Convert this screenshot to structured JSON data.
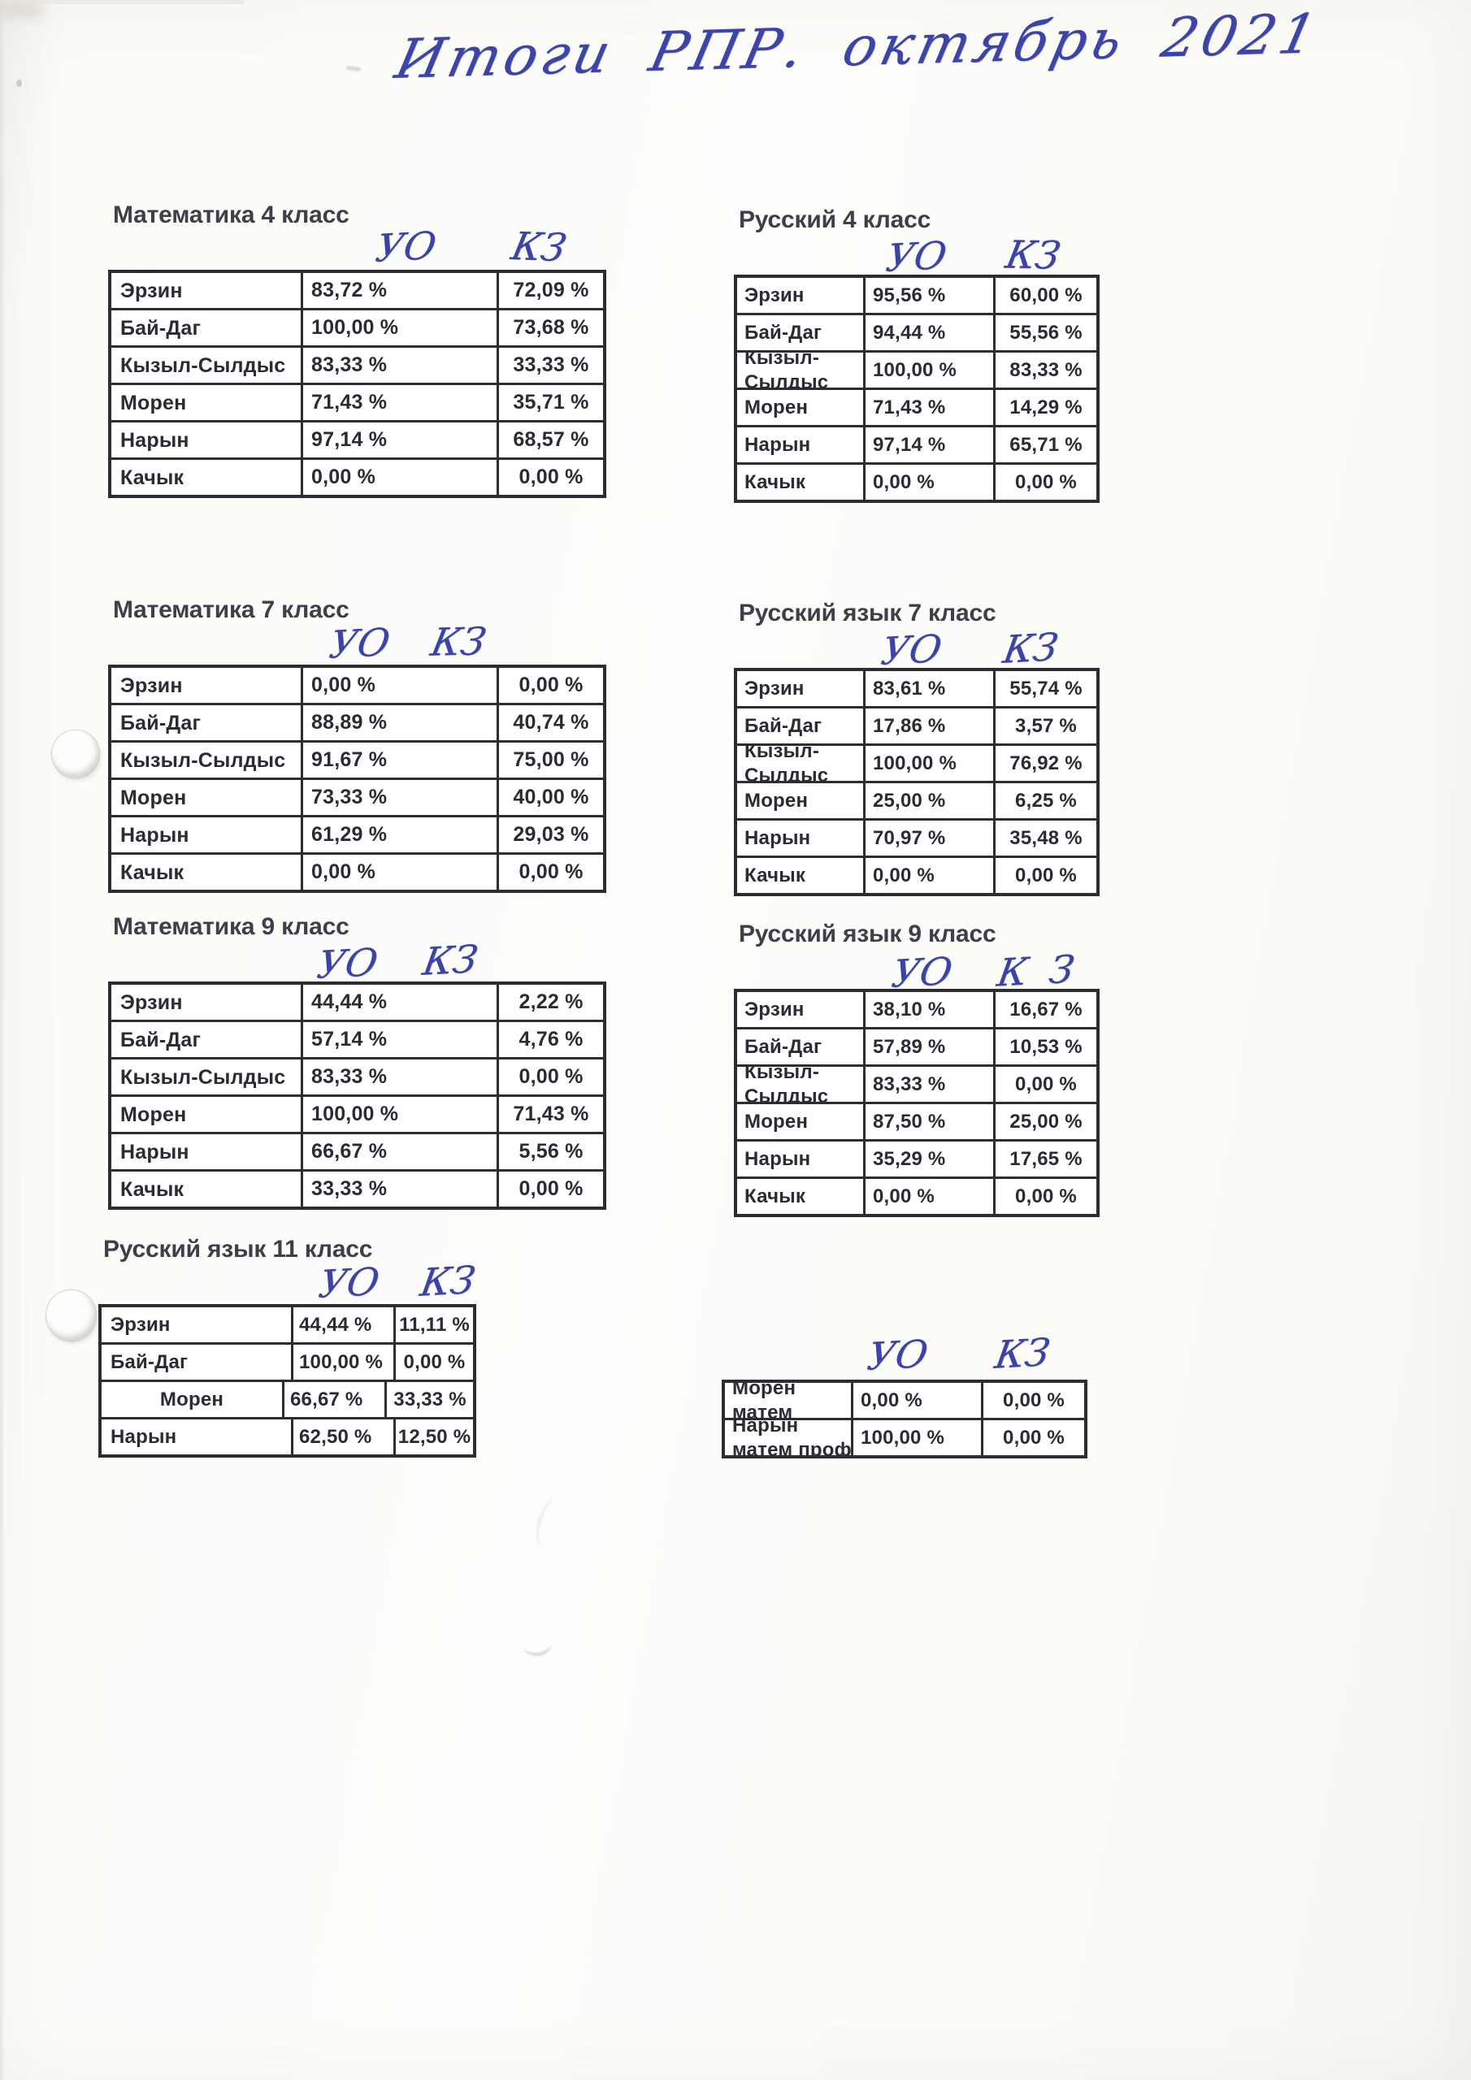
{
  "page": {
    "handwritten_title": "Итоги РПР. октябрь 2021"
  },
  "colors": {
    "ink_blue": "#3b43a6",
    "print_text": "#2b2b36",
    "table_border": "#2c2c31",
    "heading_text": "#3f3f4a"
  },
  "tables": [
    {
      "id": "math-4",
      "title": "Математика 4 класс",
      "hand_columns": {
        "uo": "УО",
        "kz": "КЗ"
      },
      "rows": [
        {
          "name": "Эрзин",
          "uo": "83,72 %",
          "kz": "72,09 %"
        },
        {
          "name": "Бай-Даг",
          "uo": "100,00 %",
          "kz": "73,68 %"
        },
        {
          "name": "Кызыл-Сылдыс",
          "uo": "83,33 %",
          "kz": "33,33 %"
        },
        {
          "name": "Морен",
          "uo": "71,43 %",
          "kz": "35,71 %"
        },
        {
          "name": "Нарын",
          "uo": "97,14 %",
          "kz": "68,57 %"
        },
        {
          "name": "Качык",
          "uo": "0,00 %",
          "kz": "0,00 %"
        }
      ]
    },
    {
      "id": "rus-4",
      "title": "Русский 4 класс",
      "hand_columns": {
        "uo": "УО",
        "kz": "КЗ"
      },
      "rows": [
        {
          "name": "Эрзин",
          "uo": "95,56 %",
          "kz": "60,00 %"
        },
        {
          "name": "Бай-Даг",
          "uo": "94,44 %",
          "kz": "55,56 %"
        },
        {
          "name": "Кызыл-Сылдыс",
          "name_lines": [
            "Кызыл-",
            "Сылдыс"
          ],
          "uo": "100,00 %",
          "kz": "83,33 %"
        },
        {
          "name": "Морен",
          "uo": "71,43 %",
          "kz": "14,29 %"
        },
        {
          "name": "Нарын",
          "uo": "97,14 %",
          "kz": "65,71 %"
        },
        {
          "name": "Качык",
          "uo": "0,00 %",
          "kz": "0,00 %"
        }
      ]
    },
    {
      "id": "math-7",
      "title": "Математика 7 класс",
      "hand_columns": {
        "uo": "УО",
        "kz": "КЗ"
      },
      "rows": [
        {
          "name": "Эрзин",
          "uo": "0,00 %",
          "kz": "0,00 %"
        },
        {
          "name": "Бай-Даг",
          "uo": "88,89 %",
          "kz": "40,74 %"
        },
        {
          "name": "Кызыл-Сылдыс",
          "uo": "91,67 %",
          "kz": "75,00 %"
        },
        {
          "name": "Морен",
          "uo": "73,33 %",
          "kz": "40,00 %"
        },
        {
          "name": "Нарын",
          "uo": "61,29 %",
          "kz": "29,03 %"
        },
        {
          "name": "Качык",
          "uo": "0,00 %",
          "kz": "0,00 %"
        }
      ]
    },
    {
      "id": "rus-7",
      "title": "Русский язык 7 класс",
      "hand_columns": {
        "uo": "УО",
        "kz": "КЗ"
      },
      "rows": [
        {
          "name": "Эрзин",
          "uo": "83,61 %",
          "kz": "55,74 %"
        },
        {
          "name": "Бай-Даг",
          "uo": "17,86 %",
          "kz": "3,57 %"
        },
        {
          "name": "Кызыл-Сылдыс",
          "name_lines": [
            "Кызыл-",
            "Сылдыс"
          ],
          "uo": "100,00 %",
          "kz": "76,92 %"
        },
        {
          "name": "Морен",
          "uo": "25,00 %",
          "kz": "6,25 %"
        },
        {
          "name": "Нарын",
          "uo": "70,97 %",
          "kz": "35,48 %"
        },
        {
          "name": "Качык",
          "uo": "0,00 %",
          "kz": "0,00 %"
        }
      ]
    },
    {
      "id": "math-9",
      "title": "Математика 9 класс",
      "hand_columns": {
        "uo": "УО",
        "kz": "КЗ"
      },
      "rows": [
        {
          "name": "Эрзин",
          "uo": "44,44 %",
          "kz": "2,22 %"
        },
        {
          "name": "Бай-Даг",
          "uo": "57,14 %",
          "kz": "4,76 %"
        },
        {
          "name": "Кызыл-Сылдыс",
          "uo": "83,33 %",
          "kz": "0,00 %"
        },
        {
          "name": "Морен",
          "uo": "100,00 %",
          "kz": "71,43 %"
        },
        {
          "name": "Нарын",
          "uo": "66,67 %",
          "kz": "5,56 %"
        },
        {
          "name": "Качык",
          "uo": "33,33 %",
          "kz": "0,00 %"
        }
      ]
    },
    {
      "id": "rus-9",
      "title": "Русский язык 9 класс",
      "hand_columns": {
        "uo": "УО",
        "kz": "К З"
      },
      "rows": [
        {
          "name": "Эрзин",
          "uo": "38,10 %",
          "kz": "16,67 %"
        },
        {
          "name": "Бай-Даг",
          "uo": "57,89 %",
          "kz": "10,53 %"
        },
        {
          "name": "Кызыл-Сылдыс",
          "name_lines": [
            "Кызыл-",
            "Сылдыс"
          ],
          "uo": "83,33 %",
          "kz": "0,00 %"
        },
        {
          "name": "Морен",
          "uo": "87,50 %",
          "kz": "25,00 %"
        },
        {
          "name": "Нарын",
          "uo": "35,29 %",
          "kz": "17,65 %"
        },
        {
          "name": "Качык",
          "uo": "0,00 %",
          "kz": "0,00 %"
        }
      ]
    },
    {
      "id": "rus-11",
      "title": "Русский язык 11 класс",
      "hand_columns": {
        "uo": "УО",
        "kz": "КЗ"
      },
      "rows": [
        {
          "name": "Эрзин",
          "uo": "44,44 %",
          "kz": "11,11 %"
        },
        {
          "name": "Бай-Даг",
          "uo": "100,00 %",
          "kz": "0,00 %"
        },
        {
          "name": "Морен",
          "uo": "66,67 %",
          "kz": "33,33 %"
        },
        {
          "name": "Нарын",
          "uo": "62,50 %",
          "kz": "12,50 %"
        }
      ]
    },
    {
      "id": "extra-bottom",
      "title": "",
      "hand_columns": {
        "uo": "УО",
        "kz": "КЗ"
      },
      "rows": [
        {
          "name": "Морен матем",
          "name_lines": [
            "Морен",
            "матем"
          ],
          "uo": "0,00 %",
          "kz": "0,00 %"
        },
        {
          "name": "Нарын матем проф",
          "name_lines": [
            "Нарын",
            "матем проф"
          ],
          "uo": "100,00 %",
          "kz": "0,00 %"
        }
      ]
    }
  ]
}
